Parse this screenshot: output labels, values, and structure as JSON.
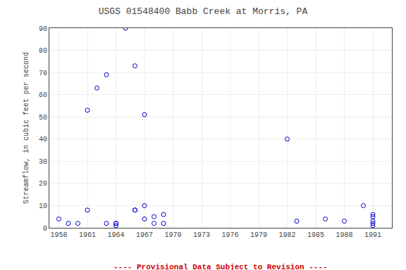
{
  "chart_data": {
    "type": "scatter",
    "title": "USGS 01548400 Babb Creek at Morris, PA",
    "y_label": "Streamflow, in cubic feet per second",
    "x": [
      1958,
      1959,
      1960,
      1961,
      1961,
      1962,
      1963,
      1963,
      1964,
      1964,
      1964,
      1965,
      1966,
      1966,
      1966,
      1967,
      1967,
      1967,
      1968,
      1968,
      1969,
      1969,
      1982,
      1983,
      1986,
      1988,
      1990,
      1991,
      1991,
      1991,
      1991,
      1991
    ],
    "values": [
      4,
      2,
      2,
      53,
      8,
      63,
      69,
      2,
      2,
      1,
      2,
      90,
      73,
      8,
      8,
      51,
      10,
      4,
      5,
      2,
      6,
      2,
      40,
      3,
      4,
      3,
      10,
      6,
      5,
      3,
      2,
      1
    ],
    "color": "#0000cc",
    "marker": "circle-open",
    "xlim": [
      1957,
      1993
    ],
    "ylim": [
      0,
      90
    ],
    "xticks": [
      1958,
      1961,
      1964,
      1967,
      1970,
      1973,
      1976,
      1979,
      1982,
      1985,
      1988,
      1991
    ],
    "yticks": [
      0,
      10,
      20,
      30,
      40,
      50,
      60,
      70,
      80,
      90
    ],
    "grid": true,
    "annotations": [
      {
        "text": "---- Provisional Data Subject to Revision ----",
        "color": "#cc0000"
      }
    ]
  }
}
